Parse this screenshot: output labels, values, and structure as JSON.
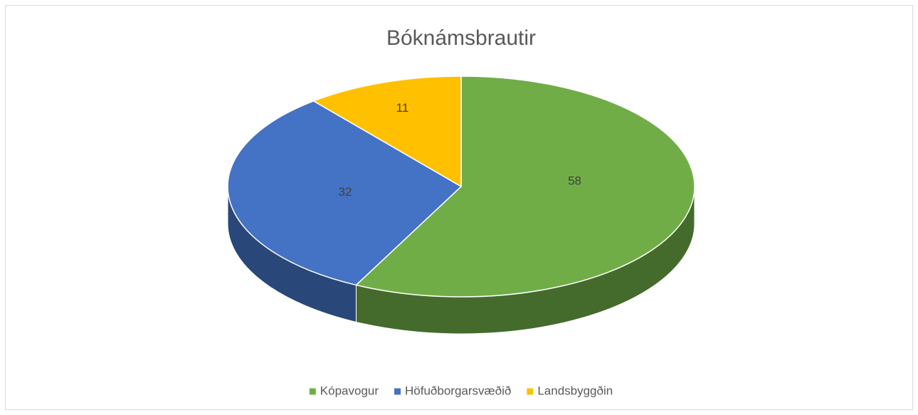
{
  "chart_data": {
    "type": "pie",
    "title": "Bóknámsbrautir",
    "categories": [
      "Kópavogur",
      "Höfuðborgarsvæðið",
      "Landsbyggðin"
    ],
    "values": [
      58,
      32,
      11
    ],
    "colors": [
      "#70ad47",
      "#4472c4",
      "#ffc000"
    ],
    "legend": "bottom"
  }
}
